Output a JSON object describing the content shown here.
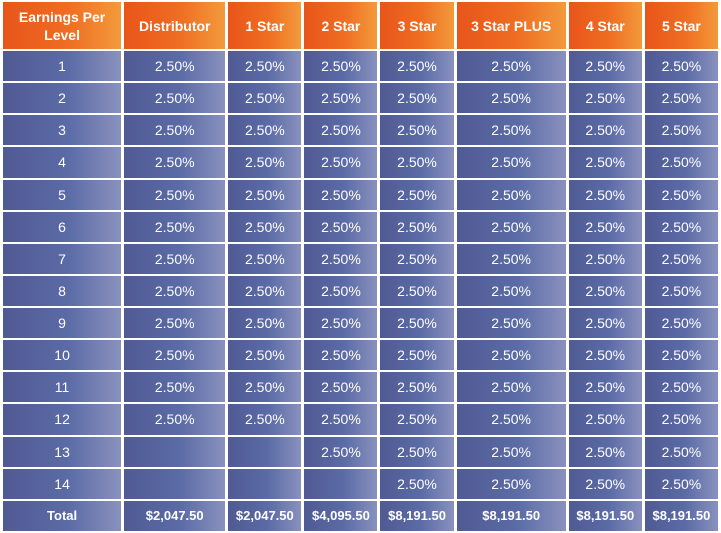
{
  "headers": [
    "Earnings Per Level",
    "Distributor",
    "1 Star",
    "2 Star",
    "3 Star",
    "3 Star PLUS",
    "4 Star",
    "5 Star"
  ],
  "rows": [
    [
      "1",
      "2.50%",
      "2.50%",
      "2.50%",
      "2.50%",
      "2.50%",
      "2.50%",
      "2.50%"
    ],
    [
      "2",
      "2.50%",
      "2.50%",
      "2.50%",
      "2.50%",
      "2.50%",
      "2.50%",
      "2.50%"
    ],
    [
      "3",
      "2.50%",
      "2.50%",
      "2.50%",
      "2.50%",
      "2.50%",
      "2.50%",
      "2.50%"
    ],
    [
      "4",
      "2.50%",
      "2.50%",
      "2.50%",
      "2.50%",
      "2.50%",
      "2.50%",
      "2.50%"
    ],
    [
      "5",
      "2.50%",
      "2.50%",
      "2.50%",
      "2.50%",
      "2.50%",
      "2.50%",
      "2.50%"
    ],
    [
      "6",
      "2.50%",
      "2.50%",
      "2.50%",
      "2.50%",
      "2.50%",
      "2.50%",
      "2.50%"
    ],
    [
      "7",
      "2.50%",
      "2.50%",
      "2.50%",
      "2.50%",
      "2.50%",
      "2.50%",
      "2.50%"
    ],
    [
      "8",
      "2.50%",
      "2.50%",
      "2.50%",
      "2.50%",
      "2.50%",
      "2.50%",
      "2.50%"
    ],
    [
      "9",
      "2.50%",
      "2.50%",
      "2.50%",
      "2.50%",
      "2.50%",
      "2.50%",
      "2.50%"
    ],
    [
      "10",
      "2.50%",
      "2.50%",
      "2.50%",
      "2.50%",
      "2.50%",
      "2.50%",
      "2.50%"
    ],
    [
      "11",
      "2.50%",
      "2.50%",
      "2.50%",
      "2.50%",
      "2.50%",
      "2.50%",
      "2.50%"
    ],
    [
      "12",
      "2.50%",
      "2.50%",
      "2.50%",
      "2.50%",
      "2.50%",
      "2.50%",
      "2.50%"
    ],
    [
      "13",
      "",
      "",
      "2.50%",
      "2.50%",
      "2.50%",
      "2.50%",
      "2.50%"
    ],
    [
      "14",
      "",
      "",
      "",
      "2.50%",
      "2.50%",
      "2.50%",
      "2.50%"
    ]
  ],
  "total": [
    "Total",
    "$2,047.50",
    "$2,047.50",
    "$4,095.50",
    "$8,191.50",
    "$8,191.50",
    "$8,191.50",
    "$8,191.50"
  ],
  "colors": {
    "header_orange": "#e8551a",
    "cell_blue": "#5b6ba6",
    "text": "#ffffff"
  }
}
